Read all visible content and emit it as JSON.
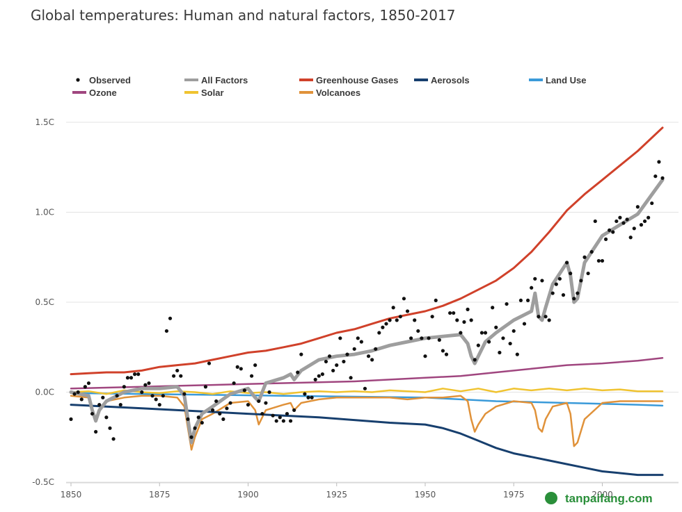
{
  "title": "Global temperatures: Human and natural factors, 1850-2017",
  "watermark": "tanpaifang.com",
  "chart_data": {
    "type": "line",
    "title": "Global temperatures: Human and natural factors, 1850-2017",
    "xlim": [
      1850,
      2017
    ],
    "ylim": [
      -0.5,
      1.5
    ],
    "x_ticks": [
      1850,
      1875,
      1900,
      1925,
      1950,
      1975,
      2000
    ],
    "x_tick_labels": [
      "1850",
      "1875",
      "1900",
      "1925",
      "1950",
      "1975",
      "2000"
    ],
    "y_ticks": [
      -0.5,
      0.0,
      0.5,
      1.0,
      1.5
    ],
    "y_tick_labels": [
      "-0.5C",
      "0.0C",
      "0.5C",
      "1.0C",
      "1.5C"
    ],
    "grid": "horizontal",
    "legend_position": "top",
    "legend": [
      {
        "name": "Observed",
        "kind": "dots",
        "color": "#111111"
      },
      {
        "name": "All Factors",
        "kind": "line",
        "color": "#9e9e9e"
      },
      {
        "name": "Greenhouse Gases",
        "kind": "line",
        "color": "#d0412a"
      },
      {
        "name": "Aerosols",
        "kind": "line",
        "color": "#173f6e"
      },
      {
        "name": "Land Use",
        "kind": "line",
        "color": "#3a9ad9"
      },
      {
        "name": "Ozone",
        "kind": "line",
        "color": "#a0467f"
      },
      {
        "name": "Solar",
        "kind": "line",
        "color": "#f0c330"
      },
      {
        "name": "Volcanoes",
        "kind": "line",
        "color": "#e0923a"
      }
    ],
    "series": [
      {
        "name": "Greenhouse Gases",
        "color": "#d0412a",
        "width": 3,
        "x": [
          1850,
          1855,
          1860,
          1865,
          1870,
          1875,
          1880,
          1885,
          1890,
          1895,
          1900,
          1905,
          1910,
          1915,
          1920,
          1925,
          1930,
          1935,
          1940,
          1945,
          1950,
          1955,
          1960,
          1965,
          1970,
          1975,
          1980,
          1985,
          1990,
          1995,
          2000,
          2005,
          2010,
          2017
        ],
        "y": [
          0.1,
          0.105,
          0.11,
          0.11,
          0.12,
          0.14,
          0.15,
          0.16,
          0.18,
          0.2,
          0.22,
          0.23,
          0.25,
          0.27,
          0.3,
          0.33,
          0.35,
          0.38,
          0.41,
          0.43,
          0.45,
          0.48,
          0.52,
          0.57,
          0.62,
          0.69,
          0.78,
          0.89,
          1.01,
          1.1,
          1.18,
          1.26,
          1.34,
          1.47
        ]
      },
      {
        "name": "Ozone",
        "color": "#a0467f",
        "width": 2.5,
        "x": [
          1850,
          1870,
          1890,
          1900,
          1910,
          1920,
          1930,
          1940,
          1950,
          1960,
          1970,
          1980,
          1990,
          2000,
          2010,
          2017
        ],
        "y": [
          0.02,
          0.03,
          0.04,
          0.045,
          0.05,
          0.055,
          0.06,
          0.07,
          0.08,
          0.09,
          0.11,
          0.13,
          0.15,
          0.16,
          0.175,
          0.19
        ]
      },
      {
        "name": "Land Use",
        "color": "#3a9ad9",
        "width": 2.5,
        "x": [
          1850,
          1870,
          1890,
          1910,
          1930,
          1950,
          1960,
          1970,
          1980,
          1990,
          2000,
          2010,
          2017
        ],
        "y": [
          -0.005,
          -0.01,
          -0.015,
          -0.02,
          -0.025,
          -0.03,
          -0.04,
          -0.05,
          -0.055,
          -0.06,
          -0.065,
          -0.07,
          -0.075
        ]
      },
      {
        "name": "Solar",
        "color": "#f0c330",
        "width": 2.5,
        "x": [
          1850,
          1855,
          1860,
          1865,
          1870,
          1875,
          1880,
          1885,
          1890,
          1895,
          1900,
          1905,
          1910,
          1915,
          1920,
          1925,
          1930,
          1935,
          1940,
          1945,
          1950,
          1955,
          1960,
          1965,
          1970,
          1975,
          1980,
          1985,
          1990,
          1995,
          2000,
          2005,
          2010,
          2017
        ],
        "y": [
          0.0,
          0.005,
          -0.01,
          0.01,
          0.0,
          -0.005,
          0.005,
          0.0,
          -0.01,
          0.005,
          -0.005,
          0.0,
          -0.01,
          0.0,
          0.005,
          0.0,
          0.005,
          0.0,
          0.01,
          0.005,
          0.0,
          0.02,
          0.005,
          0.02,
          0.0,
          0.02,
          0.01,
          0.02,
          0.01,
          0.02,
          0.01,
          0.015,
          0.005,
          0.005
        ]
      },
      {
        "name": "Volcanoes",
        "color": "#e0923a",
        "width": 2.5,
        "x": [
          1850,
          1855,
          1856,
          1857,
          1858,
          1860,
          1865,
          1870,
          1875,
          1880,
          1882,
          1883,
          1884,
          1885,
          1887,
          1890,
          1895,
          1900,
          1902,
          1903,
          1905,
          1910,
          1912,
          1913,
          1915,
          1920,
          1925,
          1930,
          1935,
          1940,
          1945,
          1950,
          1955,
          1960,
          1962,
          1963,
          1964,
          1965,
          1967,
          1970,
          1975,
          1980,
          1981,
          1982,
          1983,
          1984,
          1986,
          1990,
          1991,
          1992,
          1993,
          1995,
          2000,
          2005,
          2010,
          2017
        ],
        "y": [
          -0.02,
          -0.03,
          -0.1,
          -0.16,
          -0.1,
          -0.05,
          -0.03,
          -0.02,
          -0.02,
          -0.03,
          -0.08,
          -0.2,
          -0.32,
          -0.25,
          -0.15,
          -0.12,
          -0.06,
          -0.05,
          -0.1,
          -0.18,
          -0.1,
          -0.07,
          -0.06,
          -0.1,
          -0.06,
          -0.04,
          -0.03,
          -0.03,
          -0.03,
          -0.03,
          -0.04,
          -0.03,
          -0.03,
          -0.02,
          -0.05,
          -0.15,
          -0.22,
          -0.18,
          -0.12,
          -0.08,
          -0.05,
          -0.06,
          -0.1,
          -0.2,
          -0.22,
          -0.15,
          -0.08,
          -0.06,
          -0.12,
          -0.3,
          -0.28,
          -0.15,
          -0.06,
          -0.05,
          -0.05,
          -0.05
        ]
      },
      {
        "name": "Aerosols",
        "color": "#173f6e",
        "width": 3,
        "x": [
          1850,
          1860,
          1870,
          1880,
          1890,
          1900,
          1910,
          1920,
          1930,
          1940,
          1950,
          1955,
          1960,
          1965,
          1970,
          1975,
          1980,
          1985,
          1990,
          1995,
          2000,
          2005,
          2010,
          2017
        ],
        "y": [
          -0.07,
          -0.08,
          -0.09,
          -0.1,
          -0.11,
          -0.12,
          -0.13,
          -0.14,
          -0.155,
          -0.17,
          -0.18,
          -0.2,
          -0.23,
          -0.27,
          -0.31,
          -0.34,
          -0.36,
          -0.38,
          -0.4,
          -0.42,
          -0.44,
          -0.45,
          -0.46,
          -0.46
        ]
      },
      {
        "name": "All Factors",
        "color": "#9e9e9e",
        "width": 5,
        "x": [
          1850,
          1855,
          1856,
          1857,
          1858,
          1860,
          1865,
          1870,
          1875,
          1880,
          1882,
          1883,
          1884,
          1885,
          1887,
          1890,
          1895,
          1900,
          1902,
          1903,
          1905,
          1910,
          1912,
          1913,
          1915,
          1920,
          1925,
          1930,
          1935,
          1940,
          1945,
          1950,
          1955,
          1960,
          1962,
          1963,
          1964,
          1965,
          1967,
          1970,
          1975,
          1980,
          1981,
          1982,
          1983,
          1984,
          1986,
          1990,
          1991,
          1992,
          1993,
          1995,
          2000,
          2005,
          2010,
          2017
        ],
        "y": [
          0.0,
          -0.02,
          -0.1,
          -0.16,
          -0.1,
          -0.05,
          0.0,
          0.02,
          0.02,
          0.03,
          -0.02,
          -0.15,
          -0.28,
          -0.2,
          -0.12,
          -0.08,
          -0.01,
          0.02,
          -0.03,
          -0.05,
          0.05,
          0.08,
          0.1,
          0.07,
          0.12,
          0.18,
          0.2,
          0.21,
          0.23,
          0.26,
          0.28,
          0.3,
          0.31,
          0.32,
          0.27,
          0.2,
          0.16,
          0.2,
          0.28,
          0.33,
          0.4,
          0.45,
          0.55,
          0.42,
          0.4,
          0.47,
          0.6,
          0.72,
          0.65,
          0.5,
          0.52,
          0.72,
          0.87,
          0.93,
          0.99,
          1.18
        ]
      }
    ],
    "observed": {
      "name": "Observed",
      "color": "#111111",
      "x": [
        1850,
        1851,
        1852,
        1853,
        1854,
        1855,
        1856,
        1857,
        1858,
        1859,
        1860,
        1861,
        1862,
        1863,
        1864,
        1865,
        1866,
        1867,
        1868,
        1869,
        1870,
        1871,
        1872,
        1873,
        1874,
        1875,
        1876,
        1877,
        1878,
        1879,
        1880,
        1881,
        1882,
        1883,
        1884,
        1885,
        1886,
        1887,
        1888,
        1889,
        1890,
        1891,
        1892,
        1893,
        1894,
        1895,
        1896,
        1897,
        1898,
        1899,
        1900,
        1901,
        1902,
        1903,
        1904,
        1905,
        1906,
        1907,
        1908,
        1909,
        1910,
        1911,
        1912,
        1913,
        1914,
        1915,
        1916,
        1917,
        1918,
        1919,
        1920,
        1921,
        1922,
        1923,
        1924,
        1925,
        1926,
        1927,
        1928,
        1929,
        1930,
        1931,
        1932,
        1933,
        1934,
        1935,
        1936,
        1937,
        1938,
        1939,
        1940,
        1941,
        1942,
        1943,
        1944,
        1945,
        1946,
        1947,
        1948,
        1949,
        1950,
        1951,
        1952,
        1953,
        1954,
        1955,
        1956,
        1957,
        1958,
        1959,
        1960,
        1961,
        1962,
        1963,
        1964,
        1965,
        1966,
        1967,
        1968,
        1969,
        1970,
        1971,
        1972,
        1973,
        1974,
        1975,
        1976,
        1977,
        1978,
        1979,
        1980,
        1981,
        1982,
        1983,
        1984,
        1985,
        1986,
        1987,
        1988,
        1989,
        1990,
        1991,
        1992,
        1993,
        1994,
        1995,
        1996,
        1997,
        1998,
        1999,
        2000,
        2001,
        2002,
        2003,
        2004,
        2005,
        2006,
        2007,
        2008,
        2009,
        2010,
        2011,
        2012,
        2013,
        2014,
        2015,
        2016,
        2017
      ],
      "y": [
        -0.15,
        -0.01,
        0.0,
        -0.04,
        0.03,
        0.05,
        -0.12,
        -0.22,
        -0.07,
        -0.03,
        -0.14,
        -0.2,
        -0.26,
        -0.02,
        -0.07,
        0.03,
        0.08,
        0.08,
        0.1,
        0.1,
        0.0,
        0.04,
        0.05,
        -0.02,
        -0.04,
        -0.07,
        -0.02,
        0.34,
        0.41,
        0.09,
        0.12,
        0.09,
        -0.01,
        -0.15,
        -0.25,
        -0.2,
        -0.14,
        -0.17,
        0.03,
        0.16,
        -0.1,
        -0.05,
        -0.12,
        -0.15,
        -0.09,
        -0.06,
        0.05,
        0.14,
        0.13,
        0.01,
        -0.07,
        0.09,
        0.15,
        -0.05,
        -0.12,
        -0.06,
        0.0,
        -0.13,
        -0.16,
        -0.14,
        -0.16,
        -0.12,
        -0.16,
        -0.1,
        0.11,
        0.21,
        -0.01,
        -0.03,
        -0.03,
        0.07,
        0.09,
        0.1,
        0.17,
        0.2,
        0.12,
        0.15,
        0.3,
        0.17,
        0.21,
        0.08,
        0.24,
        0.3,
        0.28,
        0.02,
        0.2,
        0.18,
        0.24,
        0.33,
        0.36,
        0.38,
        0.4,
        0.47,
        0.4,
        0.42,
        0.52,
        0.45,
        0.3,
        0.4,
        0.34,
        0.3,
        0.2,
        0.3,
        0.42,
        0.51,
        0.29,
        0.23,
        0.21,
        0.44,
        0.44,
        0.4,
        0.33,
        0.39,
        0.46,
        0.4,
        0.18,
        0.26,
        0.33,
        0.33,
        0.28,
        0.47,
        0.36,
        0.22,
        0.3,
        0.49,
        0.27,
        0.34,
        0.21,
        0.51,
        0.38,
        0.51,
        0.58,
        0.63,
        0.42,
        0.62,
        0.42,
        0.4,
        0.55,
        0.6,
        0.63,
        0.54,
        0.72,
        0.66,
        0.52,
        0.55,
        0.62,
        0.75,
        0.66,
        0.78,
        0.95,
        0.73,
        0.73,
        0.85,
        0.9,
        0.89,
        0.95,
        0.97,
        0.94,
        0.96,
        0.86,
        0.91,
        1.03,
        0.93,
        0.95,
        0.97,
        1.05,
        1.2,
        1.28,
        1.19
      ]
    }
  }
}
